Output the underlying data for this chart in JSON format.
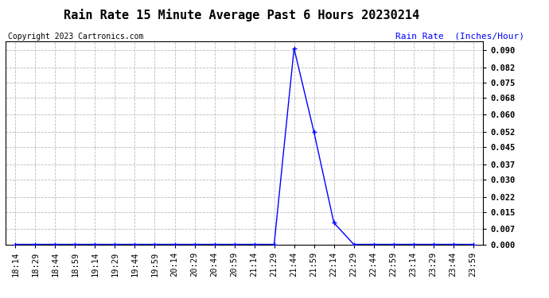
{
  "title": "Rain Rate 15 Minute Average Past 6 Hours 20230214",
  "copyright": "Copyright 2023 Cartronics.com",
  "ylabel": "Rain Rate  (Inches/Hour)",
  "line_color": "blue",
  "background_color": "white",
  "grid_color": "#bbbbbb",
  "yticks": [
    0.0,
    0.007,
    0.015,
    0.022,
    0.03,
    0.037,
    0.045,
    0.052,
    0.06,
    0.068,
    0.075,
    0.082,
    0.09
  ],
  "ylim": [
    0.0,
    0.0938
  ],
  "time_labels": [
    "18:14",
    "18:29",
    "18:44",
    "18:59",
    "19:14",
    "19:29",
    "19:44",
    "19:59",
    "20:14",
    "20:29",
    "20:44",
    "20:59",
    "21:14",
    "21:29",
    "21:44",
    "21:59",
    "22:14",
    "22:29",
    "22:44",
    "22:59",
    "23:14",
    "23:29",
    "23:44",
    "23:59"
  ],
  "data_values": [
    0.0,
    0.0,
    0.0,
    0.0,
    0.0,
    0.0,
    0.0,
    0.0,
    0.0,
    0.0,
    0.0,
    0.0,
    0.0,
    0.0,
    0.0907,
    0.052,
    0.01,
    0.0,
    0.0,
    0.0,
    0.0,
    0.0,
    0.0,
    0.0
  ],
  "title_fontsize": 11,
  "copyright_fontsize": 7,
  "ylabel_fontsize": 8,
  "tick_fontsize": 7.5,
  "fig_width": 6.9,
  "fig_height": 3.75,
  "dpi": 100
}
